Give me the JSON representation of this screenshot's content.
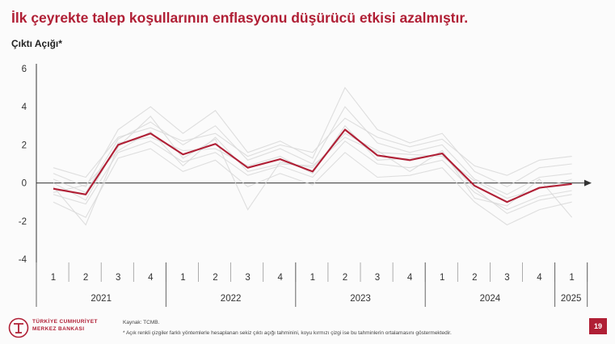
{
  "title": "İlk çeyrekte talep koşullarının enflasyonu düşürücü etkisi azalmıştır.",
  "footer": {
    "bank_name_line1": "TÜRKİYE CUMHURİYET",
    "bank_name_line2": "MERKEZ BANKASI",
    "source": "Kaynak: TCMB.",
    "note": "* Açık renkli çizgiler farklı yöntemlerle hesaplanan sekiz çıktı açığı tahminini, koyu kırmızı çizgi ise bu tahminlerin ortalamasını göstermektedir.",
    "page_number": "19"
  },
  "colors": {
    "accent": "#b01f35",
    "series_light": "#d8d8d8",
    "axis": "#333333"
  },
  "chart_data": {
    "type": "line",
    "title": "İlk çeyrekte talep koşullarının enflasyonu düşürücü etkisi azalmıştır.",
    "ylabel": "Çıktı Açığı*",
    "xlabel": "",
    "ylim": [
      -4,
      6
    ],
    "yticks": [
      "6",
      "4",
      "2",
      "0",
      "-2",
      "-4"
    ],
    "grid": false,
    "categories": [
      "1",
      "2",
      "3",
      "4",
      "1",
      "2",
      "3",
      "4",
      "1",
      "2",
      "3",
      "4",
      "1",
      "2",
      "3",
      "4",
      "1"
    ],
    "years": [
      {
        "label": "2021",
        "span": 4
      },
      {
        "label": "2022",
        "span": 4
      },
      {
        "label": "2023",
        "span": 4
      },
      {
        "label": "2024",
        "span": 4
      },
      {
        "label": "2025",
        "span": 1
      }
    ],
    "series": [
      {
        "name": "",
        "emphasis": true,
        "values": [
          -0.3,
          -0.6,
          2.0,
          2.6,
          1.5,
          2.05,
          0.8,
          1.25,
          0.6,
          2.8,
          1.45,
          1.2,
          1.55,
          -0.15,
          -1.0,
          -0.25,
          -0.05
        ]
      },
      {
        "name": "",
        "values": [
          0.2,
          -0.5,
          2.3,
          3.2,
          2.0,
          3.0,
          1.2,
          1.8,
          1.0,
          4.0,
          2.1,
          1.6,
          2.0,
          0.2,
          -0.6,
          0.3,
          0.5
        ]
      },
      {
        "name": "",
        "values": [
          -0.6,
          -1.1,
          1.6,
          2.2,
          1.1,
          1.6,
          0.4,
          0.9,
          0.3,
          2.2,
          1.0,
          0.8,
          1.2,
          -0.5,
          -1.4,
          -0.7,
          -0.4
        ]
      },
      {
        "name": "",
        "values": [
          0.5,
          -0.2,
          2.8,
          4.0,
          2.6,
          3.8,
          1.6,
          2.2,
          1.3,
          5.0,
          2.8,
          2.1,
          2.6,
          0.6,
          -0.2,
          0.8,
          1.0
        ]
      },
      {
        "name": "",
        "values": [
          -1.0,
          -1.8,
          1.3,
          1.8,
          0.6,
          1.2,
          -0.2,
          0.5,
          -0.1,
          1.6,
          0.3,
          0.4,
          0.8,
          -1.0,
          -2.2,
          -1.4,
          -1.0
        ]
      },
      {
        "name": "",
        "values": [
          0.8,
          0.3,
          2.4,
          2.9,
          2.2,
          2.6,
          1.4,
          2.0,
          1.6,
          3.4,
          2.4,
          1.9,
          2.3,
          0.9,
          0.4,
          1.2,
          1.4
        ]
      },
      {
        "name": "",
        "values": [
          -0.2,
          -2.2,
          1.9,
          3.5,
          1.3,
          2.3,
          -1.4,
          1.1,
          0.8,
          2.6,
          1.7,
          0.6,
          1.7,
          -0.8,
          -1.2,
          0.2,
          -1.8
        ]
      },
      {
        "name": "",
        "values": [
          0.0,
          -0.9,
          2.1,
          2.4,
          1.7,
          1.8,
          0.9,
          1.4,
          0.5,
          3.0,
          1.2,
          1.3,
          1.5,
          -0.3,
          -1.6,
          -0.9,
          -0.6
        ]
      },
      {
        "name": "",
        "values": [
          -0.5,
          -0.1,
          1.7,
          2.7,
          0.9,
          2.4,
          0.6,
          1.0,
          0.9,
          2.4,
          1.6,
          1.5,
          1.4,
          0.1,
          -0.8,
          -0.3,
          0.2
        ]
      }
    ]
  }
}
